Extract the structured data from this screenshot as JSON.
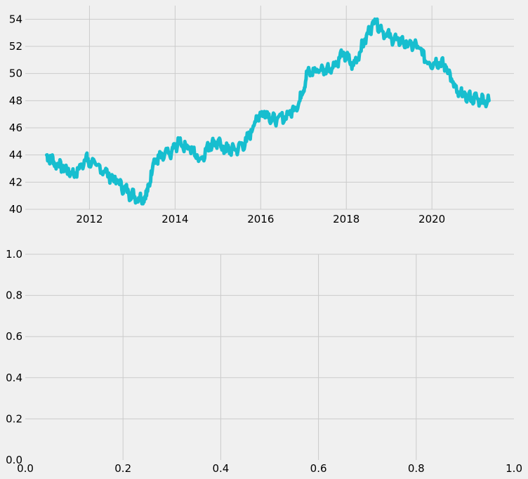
{
  "chart_data": [
    {
      "type": "line",
      "title": "",
      "xlabel": "",
      "ylabel": "",
      "grid": true,
      "xlim": [
        "2010-07-01",
        "2021-12-01"
      ],
      "ylim": [
        40,
        55
      ],
      "x_ticks": [
        "2012",
        "2014",
        "2016",
        "2018",
        "2020"
      ],
      "y_ticks": [
        "40",
        "42",
        "44",
        "46",
        "48",
        "50",
        "52",
        "54"
      ],
      "series": [
        {
          "color": "#17becf",
          "x": [
            "2011-01",
            "2011-03",
            "2011-06",
            "2011-09",
            "2011-12",
            "2012-01",
            "2012-05",
            "2012-09",
            "2012-12",
            "2013-03",
            "2013-05",
            "2013-07",
            "2013-09",
            "2013-12",
            "2014-02",
            "2014-05",
            "2014-08",
            "2014-11",
            "2015-01",
            "2015-03",
            "2015-06",
            "2015-09",
            "2015-12",
            "2016-02",
            "2016-05",
            "2016-09",
            "2016-12",
            "2017-02",
            "2017-05",
            "2017-09",
            "2017-12",
            "2018-03",
            "2018-06",
            "2018-09",
            "2018-12",
            "2019-03",
            "2019-06",
            "2019-09",
            "2019-12",
            "2020-03",
            "2020-05",
            "2020-08",
            "2020-11",
            "2021-02",
            "2021-05"
          ],
          "y": [
            44.0,
            43.5,
            43.0,
            42.5,
            43.8,
            43.5,
            42.8,
            42.0,
            41.2,
            40.8,
            41.0,
            43.5,
            43.8,
            44.2,
            45.0,
            44.5,
            43.7,
            44.8,
            44.9,
            44.4,
            44.4,
            45.0,
            46.8,
            47.2,
            46.5,
            47.0,
            48.0,
            50.0,
            50.2,
            50.4,
            51.5,
            50.6,
            52.3,
            54.0,
            52.8,
            52.5,
            52.2,
            52.0,
            50.8,
            50.8,
            50.5,
            48.6,
            48.3,
            48.1,
            48.0
          ]
        }
      ]
    },
    {
      "type": "line",
      "title": "",
      "xlabel": "",
      "ylabel": "",
      "grid": true,
      "xlim": [
        0,
        1
      ],
      "ylim": [
        0,
        1
      ],
      "x_ticks": [
        "0.0",
        "0.2",
        "0.4",
        "0.6",
        "0.8",
        "1.0"
      ],
      "y_ticks": [
        "0.0",
        "0.2",
        "0.4",
        "0.6",
        "0.8",
        "1.0"
      ],
      "series": []
    }
  ]
}
